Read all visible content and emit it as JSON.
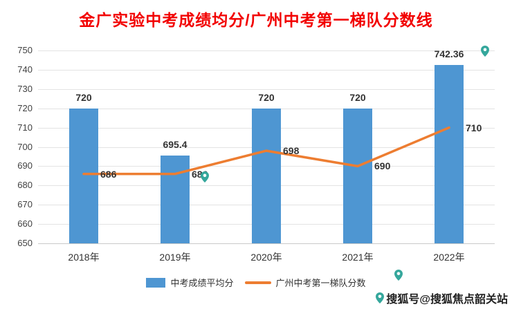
{
  "title": "金广实验中考成绩均分/广州中考第一梯队分数线",
  "title_color": "#f20000",
  "legend": [
    {
      "label": "中考成绩平均分",
      "type": "bar",
      "color": "#4e96d2"
    },
    {
      "label": "广州中考第一梯队分数",
      "type": "line",
      "color": "#ed7d31"
    }
  ],
  "watermark": {
    "text": "搜狐号@搜狐焦点韶关站",
    "icon": "map-pin-icon",
    "pin_color": "#35a79c"
  },
  "chart_data": {
    "type": "bar",
    "title": "金广实验中考成绩均分/广州中考第一梯队分数线",
    "categories": [
      "2018年",
      "2019年",
      "2020年",
      "2021年",
      "2022年"
    ],
    "series": [
      {
        "name": "中考成绩平均分",
        "type": "bar",
        "color": "#4e96d2",
        "values": [
          720,
          695.4,
          720,
          720,
          742.36
        ]
      },
      {
        "name": "广州中考第一梯队分数",
        "type": "line",
        "color": "#ed7d31",
        "values": [
          686,
          686,
          698,
          690,
          710
        ]
      }
    ],
    "xlabel": "",
    "ylabel": "",
    "ylim": [
      650,
      750
    ],
    "yticks": [
      650,
      660,
      670,
      680,
      690,
      700,
      710,
      720,
      730,
      740,
      750
    ],
    "grid": true,
    "legend_position": "bottom"
  }
}
